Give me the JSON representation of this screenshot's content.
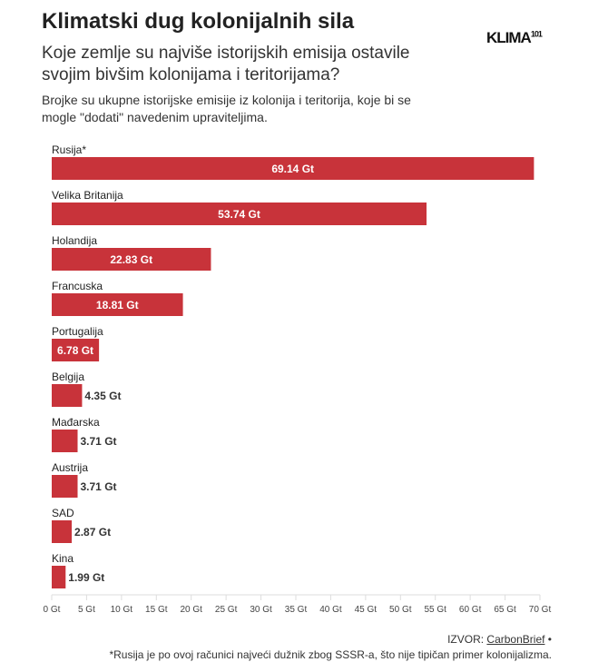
{
  "header": {
    "title": "Klimatski dug kolonijalnih sila",
    "subtitle": "Koje zemlje su najviše istorijskih emisija ostavile svojim bivšim kolonijama i teritorijama?",
    "description": "Brojke su ukupne istorijske emisije iz kolonija i teritorija, koje bi se mogle \"dodati\" navedenim upraviteljima.",
    "logo": "KLIMA",
    "logo_sup": "101"
  },
  "footer": {
    "source_label": "IZVOR: ",
    "source_link": "CarbonBrief",
    "source_tail": " •",
    "note": "*Rusija je po ovoj računici najveći dužnik zbog SSSR-a, što nije tipičan primer kolonijalizma."
  },
  "colors": {
    "bar": "#c8333a",
    "inside_label": "#ffffff",
    "outside_label": "#333333",
    "axis": "#dddddd"
  },
  "chart_data": {
    "type": "bar",
    "orientation": "horizontal",
    "categories": [
      "Rusija*",
      "Velika Britanija",
      "Holandija",
      "Francuska",
      "Portugalija",
      "Belgija",
      "Mađarska",
      "Austrija",
      "SAD",
      "Kina"
    ],
    "values": [
      69.14,
      53.74,
      22.83,
      18.81,
      6.78,
      4.35,
      3.71,
      3.71,
      2.87,
      1.99
    ],
    "data_labels": [
      "69.14 Gt",
      "53.74 Gt",
      "22.83 Gt",
      "18.81 Gt",
      "6.78 Gt",
      "4.35 Gt",
      "3.71 Gt",
      "3.71 Gt",
      "2.87 Gt",
      "1.99 Gt"
    ],
    "xlim": [
      0,
      70
    ],
    "xticks": [
      0,
      5,
      10,
      15,
      20,
      25,
      30,
      35,
      40,
      45,
      50,
      55,
      60,
      65,
      70
    ],
    "xtick_labels": [
      "0 Gt",
      "5 Gt",
      "10 Gt",
      "15 Gt",
      "20 Gt",
      "25 Gt",
      "30 Gt",
      "35 Gt",
      "40 Gt",
      "45 Gt",
      "50 Gt",
      "55 Gt",
      "60 Gt",
      "65 Gt",
      "70 Gt"
    ],
    "grid": false
  }
}
